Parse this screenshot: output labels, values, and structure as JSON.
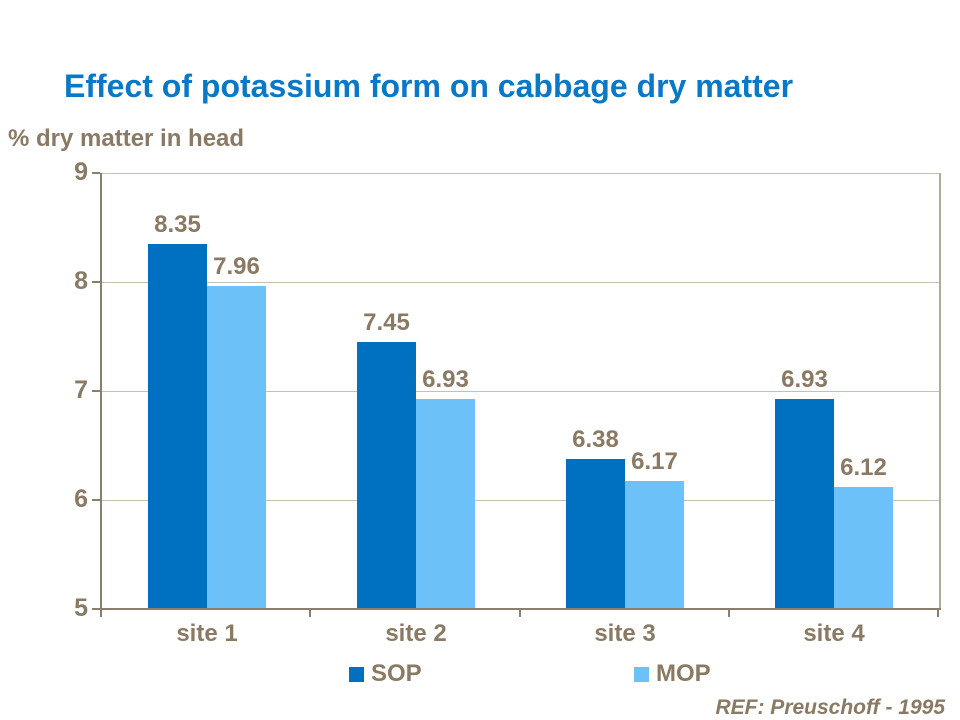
{
  "slide": {
    "title": "Effect of potassium form on cabbage dry matter",
    "reference": "REF: Preuschoff - 1995"
  },
  "chart_data": {
    "type": "bar",
    "title": "Effect of potassium form on cabbage dry matter",
    "ylabel": "% dry matter in head",
    "xlabel": "",
    "categories": [
      "site 1",
      "site 2",
      "site 3",
      "site 4"
    ],
    "series": [
      {
        "name": "SOP",
        "color": "#0070C0",
        "values": [
          8.35,
          7.45,
          6.38,
          6.93
        ]
      },
      {
        "name": "MOP",
        "color": "#6CC1F9",
        "values": [
          7.96,
          6.93,
          6.17,
          6.12
        ]
      }
    ],
    "ylim": [
      5,
      9
    ],
    "yticks": [
      5,
      6,
      7,
      8,
      9
    ],
    "grid": "horizontal",
    "legend_position": "bottom",
    "value_labels": true
  },
  "colors": {
    "title": "#0878C8",
    "text_brown": "#8A7A64",
    "axis": "#8A7E6E",
    "gridline": "#C9BFB1",
    "plot_border": "#B3A99B",
    "background": "#FFFFFF"
  }
}
